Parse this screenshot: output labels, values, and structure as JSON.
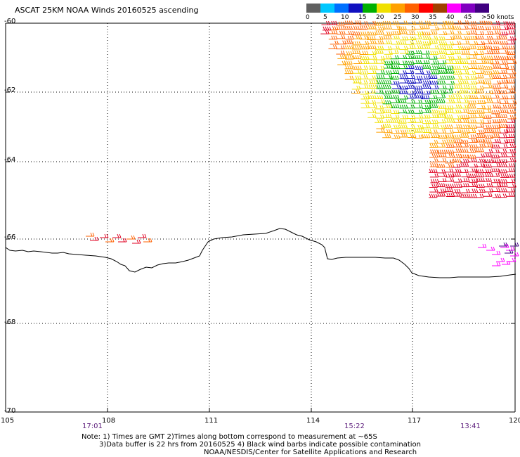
{
  "title": "ASCAT 25KM NOAA Winds 20160525 ascending",
  "legend": {
    "labels": [
      "0",
      "5",
      "10",
      "15",
      "20",
      "25",
      "30",
      "35",
      "40",
      "45",
      ">50 knots"
    ],
    "colors": [
      "#606060",
      "#00c8ff",
      "#0070ff",
      "#1010c0",
      "#00b000",
      "#f0e000",
      "#ffa000",
      "#ff6000",
      "#ff0000",
      "#a04000",
      "#ff00ff",
      "#8000c0",
      "#400080"
    ]
  },
  "lat_labels": [
    "-60",
    "-62",
    "-64",
    "-66",
    "-68",
    "-70"
  ],
  "lon_labels": [
    "105",
    "108",
    "111",
    "114",
    "117",
    "120"
  ],
  "times": [
    "17:01",
    "15:22",
    "13:41"
  ],
  "notes": [
    "Note: 1) Times are GMT 2)Times along bottom correspond to measurement at ~65S",
    "3)Data buffer is 22 hrs from 20160525 4) Black wind barbs indicate possible contamination",
    "NOAA/NESDIS/Center for Satellite Applications and Research"
  ]
}
